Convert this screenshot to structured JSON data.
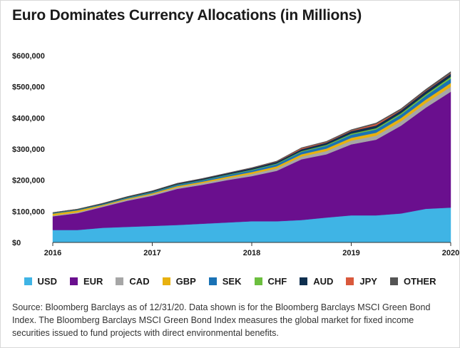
{
  "title": "Euro Dominates Currency Allocations (in Millions)",
  "source_text": "Source: Bloomberg Barclays as of 12/31/20. Data shown is for the Bloomberg Barclays MSCI Green Bond Index. The Bloomberg Barclays MSCI Green Bond Index measures the global market for fixed income securities issued to fund projects with direct environmental benefits.",
  "chart_data": {
    "type": "area",
    "stacked": true,
    "title": "Euro Dominates Currency Allocations (in Millions)",
    "xlabel": "",
    "ylabel": "",
    "xlim": [
      2016,
      2020
    ],
    "ylim": [
      0,
      600000
    ],
    "x_ticks": [
      2016,
      2017,
      2018,
      2019,
      2020
    ],
    "x_tick_labels": [
      "2016",
      "2017",
      "2018",
      "2019",
      "2020"
    ],
    "y_ticks": [
      0,
      100000,
      200000,
      300000,
      400000,
      500000,
      600000
    ],
    "y_tick_labels": [
      "$0",
      "$100,000",
      "$200,000",
      "$300,000",
      "$400,000",
      "$500,000",
      "$600,000"
    ],
    "grid": false,
    "legend_position": "bottom",
    "x": [
      2016,
      2016.25,
      2016.5,
      2016.75,
      2017,
      2017.25,
      2017.5,
      2017.75,
      2018,
      2018.25,
      2018.5,
      2018.75,
      2019,
      2019.25,
      2019.5,
      2019.75,
      2020
    ],
    "series": [
      {
        "name": "USD",
        "color": "#3fb4e5",
        "values": [
          40000,
          40000,
          47000,
          50000,
          53000,
          56000,
          60000,
          64000,
          68000,
          68000,
          72000,
          80000,
          87000,
          87000,
          93000,
          108000,
          112000
        ]
      },
      {
        "name": "EUR",
        "color": "#6a0f8e",
        "values": [
          44000,
          54000,
          67000,
          84000,
          97000,
          116000,
          125000,
          136000,
          145000,
          162000,
          195000,
          203000,
          228000,
          243000,
          282000,
          325000,
          372000
        ]
      },
      {
        "name": "CAD",
        "color": "#a6a6a6",
        "values": [
          2500,
          3000,
          3500,
          4000,
          4500,
          5000,
          5500,
          6000,
          7000,
          8000,
          9000,
          10500,
          12000,
          13000,
          14000,
          15000,
          16000
        ]
      },
      {
        "name": "GBP",
        "color": "#e8b10f",
        "values": [
          6000,
          6000,
          3000,
          3000,
          3500,
          4000,
          4500,
          5000,
          6000,
          6500,
          7000,
          8000,
          9000,
          9500,
          10500,
          11000,
          12000
        ]
      },
      {
        "name": "SEK",
        "color": "#1a72b5",
        "values": [
          2000,
          2000,
          2500,
          3000,
          3500,
          4000,
          4500,
          5000,
          6000,
          7000,
          8000,
          9000,
          10000,
          10500,
          11000,
          12000,
          14000
        ]
      },
      {
        "name": "CHF",
        "color": "#6cbf3f",
        "values": [
          500,
          500,
          500,
          800,
          1000,
          1000,
          1200,
          1500,
          1800,
          2000,
          2500,
          3000,
          3500,
          4000,
          4500,
          5000,
          6000
        ]
      },
      {
        "name": "AUD",
        "color": "#0f2f4f",
        "values": [
          1000,
          1500,
          2000,
          2500,
          3000,
          3500,
          4000,
          4500,
          5000,
          5500,
          6000,
          7000,
          8000,
          8500,
          9000,
          10000,
          10000
        ]
      },
      {
        "name": "JPY",
        "color": "#d9593c",
        "values": [
          0,
          0,
          0,
          0,
          0,
          0,
          0,
          0,
          500,
          1000,
          3000,
          2000,
          2000,
          5000,
          2000,
          2000,
          2000
        ]
      },
      {
        "name": "OTHER",
        "color": "#545454",
        "values": [
          500,
          500,
          500,
          500,
          700,
          800,
          900,
          1000,
          1200,
          1500,
          2000,
          2500,
          3000,
          3500,
          4000,
          4500,
          5000
        ]
      }
    ]
  }
}
